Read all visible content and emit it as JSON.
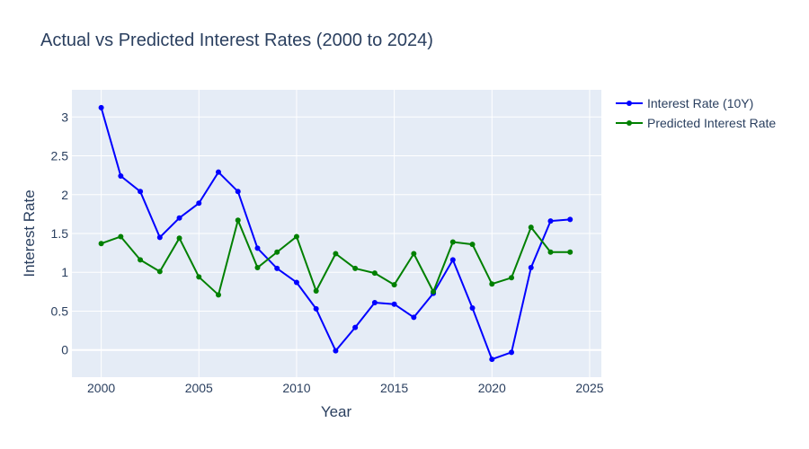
{
  "chart_data": {
    "type": "line",
    "title": "Actual vs Predicted Interest Rates (2000 to 2024)",
    "xlabel": "Year",
    "ylabel": "Interest Rate",
    "xlim": [
      1998.5,
      2025.6
    ],
    "ylim": [
      -0.35,
      3.35
    ],
    "x_ticks": [
      2000,
      2005,
      2010,
      2015,
      2020,
      2025
    ],
    "x_tick_labels": [
      "2000",
      "2005",
      "2010",
      "2015",
      "2020",
      "2025"
    ],
    "y_ticks": [
      0,
      0.5,
      1,
      1.5,
      2,
      2.5,
      3
    ],
    "y_tick_labels": [
      "0",
      "0.5",
      "1",
      "1.5",
      "2",
      "2.5",
      "3"
    ],
    "grid": true,
    "legend_position": "top-right",
    "x": [
      2000,
      2001,
      2002,
      2003,
      2004,
      2005,
      2006,
      2007,
      2008,
      2009,
      2010,
      2011,
      2012,
      2013,
      2014,
      2015,
      2016,
      2017,
      2018,
      2019,
      2020,
      2021,
      2022,
      2023,
      2024
    ],
    "series": [
      {
        "name": "Interest Rate (10Y)",
        "color": "#0000ff",
        "values": [
          3.12,
          2.24,
          2.04,
          1.45,
          1.7,
          1.89,
          2.29,
          2.04,
          1.31,
          1.05,
          0.87,
          0.53,
          -0.01,
          0.29,
          0.61,
          0.59,
          0.42,
          0.73,
          1.16,
          0.54,
          -0.12,
          -0.03,
          1.06,
          1.66,
          1.68
        ]
      },
      {
        "name": "Predicted Interest Rate",
        "color": "#008000",
        "values": [
          1.37,
          1.46,
          1.16,
          1.01,
          1.44,
          0.94,
          0.71,
          1.67,
          1.06,
          1.26,
          1.46,
          0.76,
          1.24,
          1.05,
          0.99,
          0.84,
          1.24,
          0.75,
          1.39,
          1.36,
          0.85,
          0.93,
          1.58,
          1.26,
          1.26
        ]
      }
    ]
  }
}
